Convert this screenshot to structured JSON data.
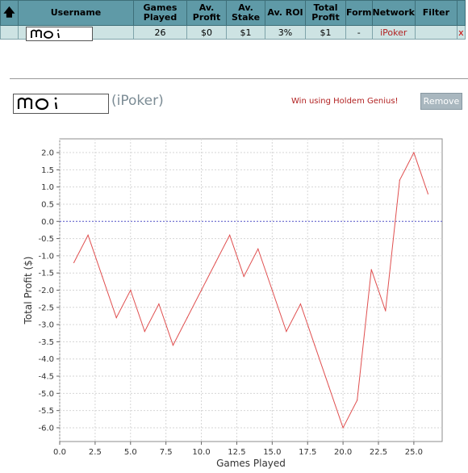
{
  "table": {
    "headers": {
      "sort_icon": "up-arrow-icon",
      "username": "Username",
      "games_played": [
        "Games",
        "Played"
      ],
      "av_profit": [
        "Av.",
        "Profit"
      ],
      "av_stake": [
        "Av.",
        "Stake"
      ],
      "av_roi": "Av. ROI",
      "total_profit": [
        "Total",
        "Profit"
      ],
      "form": "Form",
      "network": "Network",
      "filter": "Filter"
    },
    "row": {
      "games_played": "26",
      "av_profit": "$0",
      "av_stake": "$1",
      "av_roi": "3%",
      "total_profit": "$1",
      "form": "-",
      "network": "iPoker",
      "delete": "x"
    }
  },
  "player": {
    "signature": "moi",
    "network_label": "(iPoker)",
    "win_note": "Win using Holdem Genius!",
    "remove_label": "Remove"
  },
  "colors": {
    "header_bg": "#5f9aa7",
    "row_bg": "#cde3e3",
    "line": "#e05050",
    "zero_line": "#5a5ad0",
    "note_red": "#b22222",
    "button_bg": "#a9b7bf"
  },
  "chart_data": {
    "type": "line",
    "xlabel": "Games Played",
    "ylabel": "Total Profit ($)",
    "xlim": [
      0,
      27
    ],
    "ylim": [
      -6.4,
      2.4
    ],
    "grid": true,
    "xticks": [
      0.0,
      2.5,
      5.0,
      7.5,
      10.0,
      12.5,
      15.0,
      17.5,
      20.0,
      22.5,
      25.0
    ],
    "xtick_labels": [
      "0.0",
      "2.5",
      "5.0",
      "7.5",
      "10.0",
      "12.5",
      "15.0",
      "17.5",
      "20.0",
      "22.5",
      "25.0"
    ],
    "yticks": [
      2.0,
      1.5,
      1.0,
      0.5,
      0.0,
      -0.5,
      -1.0,
      -1.5,
      -2.0,
      -2.5,
      -3.0,
      -3.5,
      -4.0,
      -4.5,
      -5.0,
      -5.5,
      -6.0
    ],
    "ytick_labels": [
      "2.0",
      "1.5",
      "1.0",
      "0.5",
      "0.0",
      "-0.5",
      "-1.0",
      "-1.5",
      "-2.0",
      "-2.5",
      "-3.0",
      "-3.5",
      "-4.0",
      "-4.5",
      "-5.0",
      "-5.5",
      "-6.0"
    ],
    "series": [
      {
        "x": [
          1,
          2,
          3,
          4,
          5,
          6,
          7,
          8,
          9,
          10,
          11,
          12,
          13,
          14,
          15,
          16,
          17,
          18,
          19,
          20,
          21,
          22,
          23,
          24,
          25,
          26
        ],
        "y": [
          -1.2,
          -0.4,
          -1.6,
          -2.8,
          -2.0,
          -3.2,
          -2.4,
          -3.6,
          -2.8,
          -2.0,
          -1.2,
          -0.4,
          -1.6,
          -0.8,
          -2.0,
          -3.2,
          -2.4,
          -3.6,
          -4.8,
          -6.0,
          -5.2,
          -1.4,
          -2.6,
          1.2,
          2.0,
          0.8
        ]
      }
    ]
  }
}
